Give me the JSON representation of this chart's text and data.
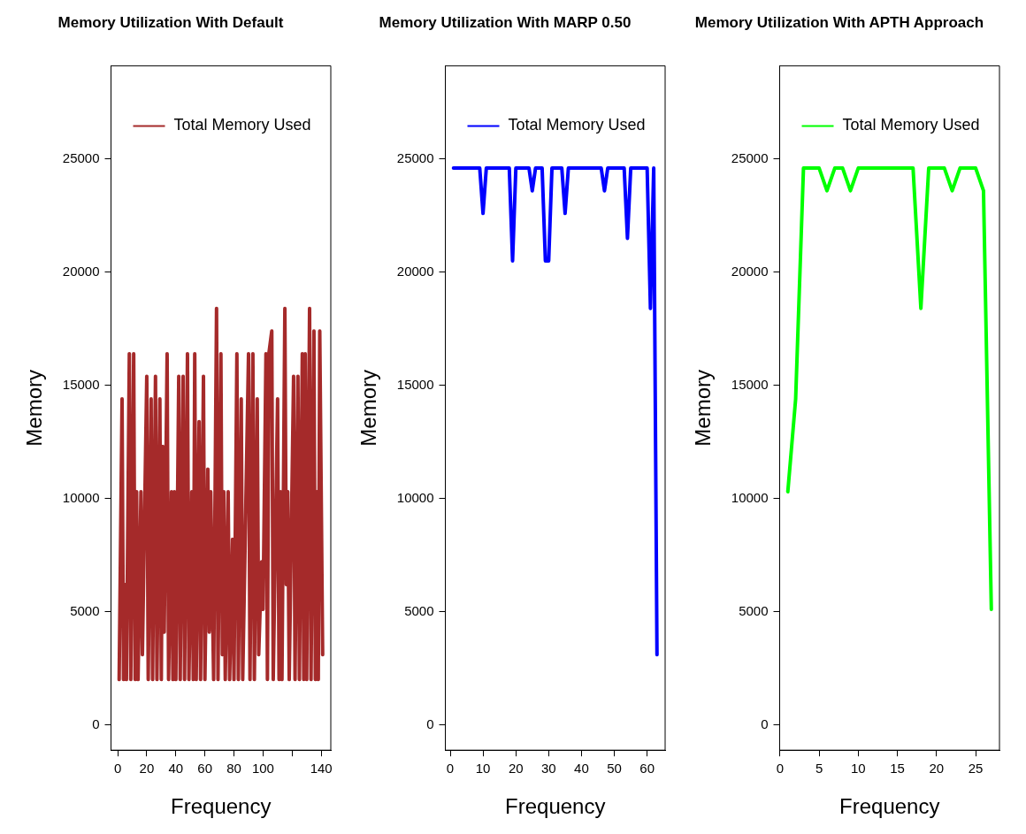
{
  "chart_data": [
    {
      "type": "line",
      "title": "Memory Utilization With Default",
      "xlabel": "Frequency",
      "ylabel": "Memory",
      "legend": "top left",
      "xlim": [
        -4.6,
        146.6
      ],
      "xticks": [
        0,
        20,
        40,
        60,
        80,
        100,
        {
          "value": 120,
          "label": null
        },
        140
      ],
      "ylim": [
        -1120,
        29120
      ],
      "yticks": [
        0,
        5000,
        10000,
        15000,
        20000,
        25000
      ],
      "series": [
        {
          "name": "Total Memory Used",
          "color": "#a52a2a",
          "x": [
            1,
            3,
            4,
            5,
            6,
            8,
            9,
            11,
            12,
            13,
            14,
            16,
            17,
            20,
            21,
            23,
            24,
            26,
            27,
            29,
            30,
            31,
            32,
            34,
            35,
            37,
            38,
            39,
            40,
            42,
            43,
            45,
            46,
            48,
            49,
            51,
            52,
            53,
            54,
            56,
            57,
            59,
            60,
            62,
            63,
            64,
            66,
            68,
            69,
            71,
            72,
            73,
            74,
            76,
            77,
            79,
            80,
            82,
            83,
            85,
            86,
            90,
            91,
            93,
            94,
            96,
            97,
            99,
            100,
            102,
            103,
            104,
            106,
            107,
            110,
            111,
            112,
            113,
            115,
            116,
            117,
            118,
            121,
            122,
            124,
            125,
            127,
            128,
            129,
            130,
            132,
            133,
            135,
            136,
            137,
            138,
            139,
            141
          ],
          "values": [
            2000,
            14400,
            2000,
            6200,
            2000,
            16400,
            2000,
            16400,
            2000,
            10300,
            2000,
            10300,
            3100,
            15400,
            2000,
            14400,
            2000,
            15400,
            2000,
            14400,
            2000,
            12300,
            4100,
            16400,
            2000,
            10300,
            2000,
            10300,
            2000,
            15400,
            2000,
            15400,
            2000,
            16400,
            2000,
            10300,
            2000,
            16400,
            2000,
            13400,
            2000,
            15400,
            2000,
            11300,
            4100,
            10300,
            2000,
            18400,
            2000,
            16400,
            3100,
            10300,
            2000,
            10300,
            2000,
            8200,
            2000,
            16400,
            2000,
            14400,
            2000,
            16400,
            2000,
            16400,
            2000,
            14400,
            3100,
            7200,
            5100,
            16400,
            2000,
            16400,
            17400,
            2000,
            14400,
            2000,
            10300,
            2000,
            18400,
            6200,
            10300,
            2000,
            15400,
            2000,
            15400,
            2000,
            16400,
            2000,
            16400,
            2000,
            18400,
            2000,
            17400,
            2000,
            10300,
            2000,
            17400,
            3100
          ]
        }
      ]
    },
    {
      "type": "line",
      "title": "Memory Utilization With MARP 0.50",
      "xlabel": "Frequency",
      "ylabel": "Memory",
      "legend": "top left",
      "xlim": [
        -1.48,
        65.48
      ],
      "xticks": [
        0,
        10,
        20,
        30,
        40,
        50,
        60
      ],
      "ylim": [
        -1120,
        29120
      ],
      "yticks": [
        0,
        5000,
        10000,
        15000,
        20000,
        25000
      ],
      "series": [
        {
          "name": "Total Memory Used",
          "color": "#0000ff",
          "x": [
            1,
            2,
            3,
            4,
            5,
            6,
            7,
            8,
            9,
            10,
            11,
            12,
            13,
            14,
            15,
            16,
            17,
            18,
            19,
            20,
            21,
            22,
            23,
            24,
            25,
            26,
            27,
            28,
            29,
            30,
            31,
            32,
            33,
            34,
            35,
            36,
            37,
            38,
            39,
            40,
            41,
            42,
            43,
            44,
            45,
            46,
            47,
            48,
            49,
            50,
            51,
            52,
            53,
            54,
            55,
            56,
            57,
            58,
            59,
            60,
            61,
            62,
            63
          ],
          "values": [
            24600,
            24600,
            24600,
            24600,
            24600,
            24600,
            24600,
            24600,
            24600,
            22600,
            24600,
            24600,
            24600,
            24600,
            24600,
            24600,
            24600,
            24600,
            20500,
            24600,
            24600,
            24600,
            24600,
            24600,
            23600,
            24600,
            24600,
            24600,
            20500,
            20500,
            24600,
            24600,
            24600,
            24600,
            22600,
            24600,
            24600,
            24600,
            24600,
            24600,
            24600,
            24600,
            24600,
            24600,
            24600,
            24600,
            23600,
            24600,
            24600,
            24600,
            24600,
            24600,
            24600,
            21500,
            24600,
            24600,
            24600,
            24600,
            24600,
            24600,
            18400,
            24600,
            3100
          ]
        }
      ]
    },
    {
      "type": "line",
      "title": "Memory Utilization With APTH Approach",
      "xlabel": "Frequency",
      "ylabel": "Memory",
      "legend": "top left",
      "xlim": [
        -0.04,
        28.04
      ],
      "xticks": [
        0,
        5,
        10,
        15,
        20,
        25
      ],
      "ylim": [
        -1120,
        29120
      ],
      "yticks": [
        0,
        5000,
        10000,
        15000,
        20000,
        25000
      ],
      "series": [
        {
          "name": "Total Memory Used",
          "color": "#00ff00",
          "x": [
            1,
            2,
            3,
            4,
            5,
            6,
            7,
            8,
            9,
            10,
            11,
            12,
            13,
            14,
            15,
            16,
            17,
            18,
            19,
            20,
            21,
            22,
            23,
            24,
            25,
            26,
            27
          ],
          "values": [
            10300,
            14400,
            24600,
            24600,
            24600,
            23600,
            24600,
            24600,
            23600,
            24600,
            24600,
            24600,
            24600,
            24600,
            24600,
            24600,
            24600,
            18400,
            24600,
            24600,
            24600,
            23600,
            24600,
            24600,
            24600,
            23600,
            5100
          ]
        }
      ]
    }
  ]
}
